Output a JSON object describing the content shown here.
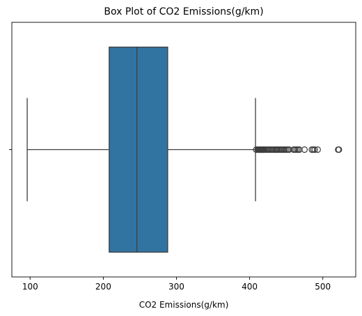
{
  "chart_data": {
    "type": "boxplot",
    "orientation": "horizontal",
    "title": "Box Plot of CO2 Emissions(g/km)",
    "xlabel": "CO2 Emissions(g/km)",
    "ylabel": "",
    "xlim": [
      75,
      545
    ],
    "xticks": [
      100,
      200,
      300,
      400,
      500
    ],
    "grid": false,
    "box": {
      "whisker_low": 96,
      "q1": 208,
      "median": 246,
      "q3": 288,
      "whisker_high": 408
    },
    "outliers": [
      409,
      411,
      412,
      413,
      414,
      415,
      416,
      417,
      418,
      419,
      420,
      422,
      424,
      426,
      428,
      430,
      432,
      434,
      436,
      437,
      438,
      440,
      442,
      444,
      446,
      448,
      450,
      452,
      454,
      460,
      462,
      464,
      466,
      468,
      475,
      485,
      487,
      489,
      493,
      521,
      522
    ],
    "colors": {
      "box_fill": "#3274a1",
      "line": "#3d3d3d"
    }
  }
}
